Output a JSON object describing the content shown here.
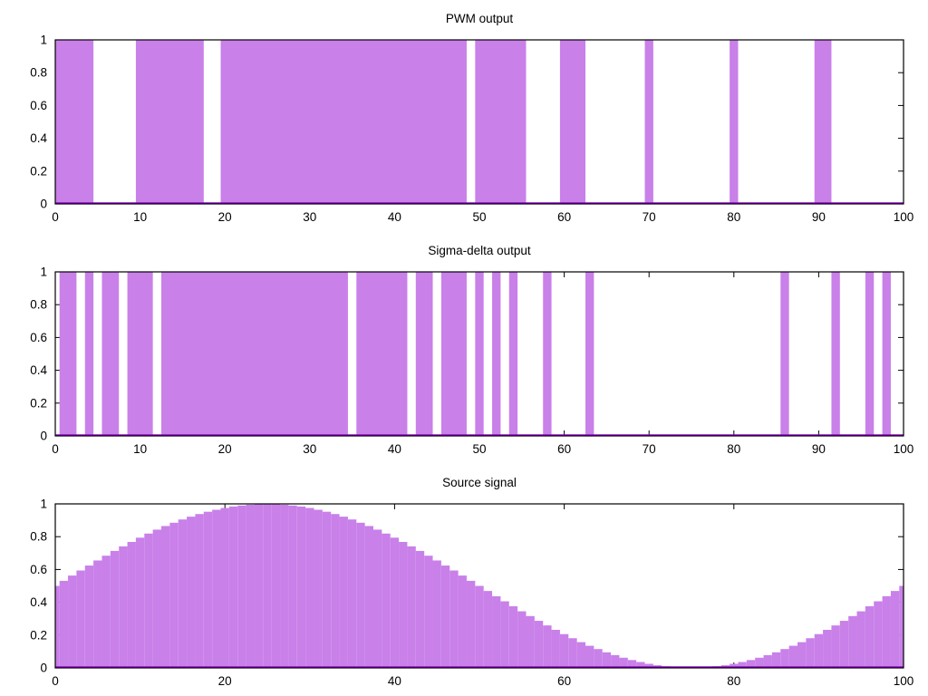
{
  "page": {
    "background": "#ffffff"
  },
  "colors": {
    "fill": "#c980e9",
    "baseline": "#9400d3",
    "axis": "#000000",
    "text": "#000000"
  },
  "chart_data": [
    {
      "type": "bar",
      "subtype": "pulse-train",
      "title": "PWM output",
      "xlabel": "",
      "ylabel": "",
      "x_range": [
        0,
        100
      ],
      "y_range": [
        0,
        1
      ],
      "x_ticks": [
        0,
        10,
        20,
        30,
        40,
        50,
        60,
        70,
        80,
        90,
        100
      ],
      "y_ticks": [
        0,
        0.2,
        0.4,
        0.6,
        0.8,
        1
      ],
      "grid": false,
      "legend": "none",
      "sample_step": 1,
      "box_width": 1,
      "pulse_level": 1,
      "on_runs": [
        [
          0,
          4
        ],
        [
          10,
          17
        ],
        [
          20,
          48
        ],
        [
          50,
          55
        ],
        [
          60,
          62
        ],
        [
          70,
          70
        ],
        [
          80,
          80
        ],
        [
          90,
          91
        ]
      ]
    },
    {
      "type": "bar",
      "subtype": "pulse-train",
      "title": "Sigma-delta output",
      "xlabel": "",
      "ylabel": "",
      "x_range": [
        0,
        100
      ],
      "y_range": [
        0,
        1
      ],
      "x_ticks": [
        0,
        10,
        20,
        30,
        40,
        50,
        60,
        70,
        80,
        90,
        100
      ],
      "y_ticks": [
        0,
        0.2,
        0.4,
        0.6,
        0.8,
        1
      ],
      "grid": false,
      "legend": "none",
      "sample_step": 1,
      "box_width": 1,
      "pulse_level": 1,
      "on_runs": [
        [
          1,
          2
        ],
        [
          4,
          4
        ],
        [
          6,
          7
        ],
        [
          9,
          11
        ],
        [
          13,
          34
        ],
        [
          36,
          41
        ],
        [
          43,
          44
        ],
        [
          46,
          48
        ],
        [
          50,
          50
        ],
        [
          52,
          52
        ],
        [
          54,
          54
        ],
        [
          58,
          58
        ],
        [
          63,
          63
        ],
        [
          86,
          86
        ],
        [
          92,
          92
        ],
        [
          96,
          96
        ],
        [
          98,
          98
        ]
      ]
    },
    {
      "type": "bar",
      "subtype": "staircase-wave",
      "title": "Source signal",
      "xlabel": "",
      "ylabel": "",
      "x_range": [
        0,
        100
      ],
      "y_range": [
        0,
        1
      ],
      "x_ticks": [
        0,
        20,
        40,
        60,
        80,
        100
      ],
      "y_ticks": [
        0,
        0.2,
        0.4,
        0.6,
        0.8,
        1
      ],
      "grid": false,
      "legend": "none",
      "x_start": 0,
      "x_step": 1,
      "box_width": 1,
      "values": [
        0.5,
        0.531,
        0.563,
        0.594,
        0.624,
        0.655,
        0.684,
        0.713,
        0.741,
        0.768,
        0.794,
        0.819,
        0.843,
        0.865,
        0.885,
        0.905,
        0.922,
        0.938,
        0.952,
        0.964,
        0.975,
        0.984,
        0.99,
        0.995,
        0.999,
        1,
        0.999,
        0.995,
        0.99,
        0.984,
        0.975,
        0.964,
        0.952,
        0.938,
        0.922,
        0.905,
        0.885,
        0.865,
        0.843,
        0.819,
        0.794,
        0.768,
        0.741,
        0.713,
        0.684,
        0.655,
        0.624,
        0.594,
        0.563,
        0.531,
        0.5,
        0.469,
        0.437,
        0.406,
        0.376,
        0.345,
        0.316,
        0.287,
        0.259,
        0.232,
        0.206,
        0.181,
        0.157,
        0.135,
        0.115,
        0.095,
        0.078,
        0.062,
        0.048,
        0.036,
        0.025,
        0.016,
        0.01,
        0.005,
        0.001,
        0,
        0.001,
        0.005,
        0.01,
        0.016,
        0.025,
        0.036,
        0.048,
        0.062,
        0.078,
        0.095,
        0.115,
        0.135,
        0.157,
        0.181,
        0.206,
        0.232,
        0.259,
        0.287,
        0.316,
        0.345,
        0.376,
        0.406,
        0.437,
        0.469,
        0.5
      ]
    }
  ]
}
